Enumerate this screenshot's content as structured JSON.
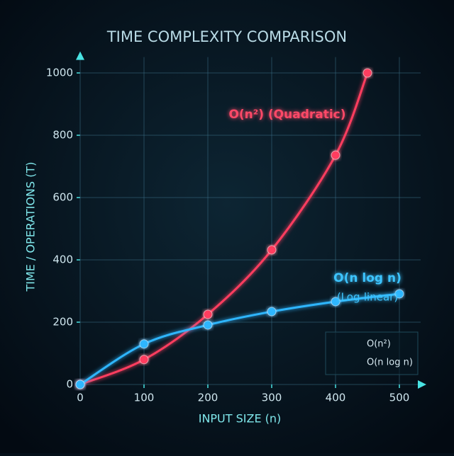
{
  "chart_data": {
    "type": "line",
    "title": "TIME COMPLEXITY COMPARISON",
    "xlabel": "INPUT SIZE (n)",
    "ylabel": "TIME / OPERATIONS (T)",
    "xlim": [
      0,
      540
    ],
    "ylim": [
      0,
      1060
    ],
    "xticks": [
      0,
      100,
      200,
      300,
      400,
      500
    ],
    "yticks": [
      0,
      200,
      400,
      600,
      800,
      1000
    ],
    "grid": true,
    "legend": "lower right",
    "series": [
      {
        "name": "O(n²)",
        "color": "#ff3d5e",
        "x": [
          0,
          100,
          200,
          300,
          400,
          450
        ],
        "values": [
          0,
          80,
          225,
          432,
          736,
          1000
        ]
      },
      {
        "name": "O(n log n)",
        "color": "#2fb6ff",
        "x": [
          0,
          100,
          200,
          300,
          400,
          500
        ],
        "values": [
          0,
          130,
          191,
          234,
          266,
          291
        ]
      }
    ],
    "annotations": [
      {
        "text": "O(n²) (Quadratic)",
        "color": "#ff4a68"
      },
      {
        "text": "O(n log n)",
        "color": "#3cc4ff"
      },
      {
        "text": "(Log-linear)",
        "color": "#3cc4ff"
      }
    ]
  }
}
